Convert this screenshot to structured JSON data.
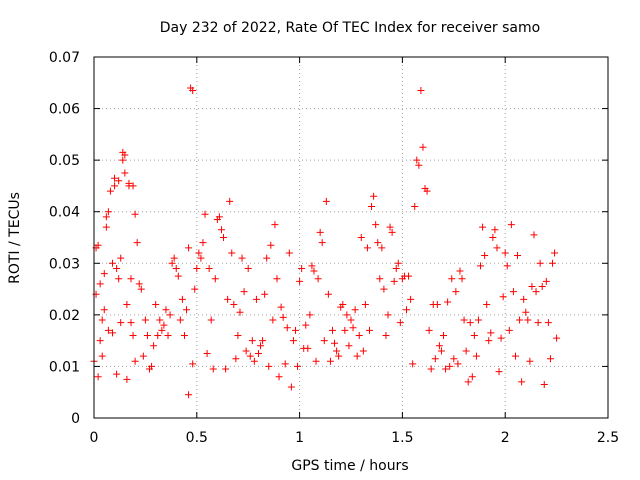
{
  "chart_data": {
    "type": "scatter",
    "title": "Day 232 of 2022, Rate Of TEC Index for receiver samo",
    "xlabel": "GPS time / hours",
    "ylabel": "ROTI / TECUs",
    "xlim": [
      0,
      2.5
    ],
    "ylim": [
      0,
      0.07
    ],
    "xticks": [
      "0",
      "0.5",
      "1",
      "1.5",
      "2",
      "2.5"
    ],
    "yticks": [
      "0",
      "0.01",
      "0.02",
      "0.03",
      "0.04",
      "0.05",
      "0.06",
      "0.07"
    ],
    "grid": true,
    "marker": "+",
    "color": "#ff0000",
    "series": [
      {
        "points": [
          [
            0.0,
            0.011
          ],
          [
            0.01,
            0.024
          ],
          [
            0.01,
            0.033
          ],
          [
            0.02,
            0.0335
          ],
          [
            0.02,
            0.008
          ],
          [
            0.03,
            0.015
          ],
          [
            0.03,
            0.026
          ],
          [
            0.04,
            0.019
          ],
          [
            0.04,
            0.012
          ],
          [
            0.05,
            0.028
          ],
          [
            0.05,
            0.021
          ],
          [
            0.06,
            0.039
          ],
          [
            0.06,
            0.037
          ],
          [
            0.07,
            0.04
          ],
          [
            0.07,
            0.017
          ],
          [
            0.08,
            0.044
          ],
          [
            0.09,
            0.03
          ],
          [
            0.09,
            0.0165
          ],
          [
            0.1,
            0.045
          ],
          [
            0.1,
            0.0465
          ],
          [
            0.11,
            0.029
          ],
          [
            0.11,
            0.0085
          ],
          [
            0.12,
            0.046
          ],
          [
            0.12,
            0.027
          ],
          [
            0.13,
            0.031
          ],
          [
            0.13,
            0.0185
          ],
          [
            0.14,
            0.0515
          ],
          [
            0.14,
            0.05
          ],
          [
            0.15,
            0.051
          ],
          [
            0.15,
            0.0475
          ],
          [
            0.16,
            0.022
          ],
          [
            0.16,
            0.0075
          ],
          [
            0.17,
            0.045
          ],
          [
            0.17,
            0.0455
          ],
          [
            0.18,
            0.027
          ],
          [
            0.18,
            0.0185
          ],
          [
            0.19,
            0.045
          ],
          [
            0.19,
            0.016
          ],
          [
            0.2,
            0.0395
          ],
          [
            0.2,
            0.011
          ],
          [
            0.21,
            0.034
          ],
          [
            0.22,
            0.026
          ],
          [
            0.23,
            0.025
          ],
          [
            0.24,
            0.012
          ],
          [
            0.25,
            0.019
          ],
          [
            0.26,
            0.016
          ],
          [
            0.27,
            0.0095
          ],
          [
            0.28,
            0.01
          ],
          [
            0.29,
            0.014
          ],
          [
            0.3,
            0.022
          ],
          [
            0.31,
            0.016
          ],
          [
            0.32,
            0.019
          ],
          [
            0.33,
            0.017
          ],
          [
            0.34,
            0.018
          ],
          [
            0.35,
            0.021
          ],
          [
            0.36,
            0.016
          ],
          [
            0.37,
            0.02
          ],
          [
            0.38,
            0.03
          ],
          [
            0.39,
            0.031
          ],
          [
            0.4,
            0.029
          ],
          [
            0.41,
            0.0275
          ],
          [
            0.42,
            0.019
          ],
          [
            0.43,
            0.023
          ],
          [
            0.44,
            0.016
          ],
          [
            0.45,
            0.021
          ],
          [
            0.46,
            0.0045
          ],
          [
            0.46,
            0.033
          ],
          [
            0.47,
            0.064
          ],
          [
            0.48,
            0.0635
          ],
          [
            0.48,
            0.0105
          ],
          [
            0.49,
            0.025
          ],
          [
            0.5,
            0.029
          ],
          [
            0.51,
            0.032
          ],
          [
            0.52,
            0.031
          ],
          [
            0.53,
            0.034
          ],
          [
            0.54,
            0.0395
          ],
          [
            0.55,
            0.0125
          ],
          [
            0.56,
            0.029
          ],
          [
            0.57,
            0.019
          ],
          [
            0.58,
            0.0095
          ],
          [
            0.59,
            0.027
          ],
          [
            0.6,
            0.0385
          ],
          [
            0.61,
            0.039
          ],
          [
            0.62,
            0.0365
          ],
          [
            0.63,
            0.035
          ],
          [
            0.64,
            0.0095
          ],
          [
            0.65,
            0.023
          ],
          [
            0.66,
            0.042
          ],
          [
            0.67,
            0.032
          ],
          [
            0.68,
            0.022
          ],
          [
            0.69,
            0.0115
          ],
          [
            0.7,
            0.016
          ],
          [
            0.71,
            0.0205
          ],
          [
            0.72,
            0.031
          ],
          [
            0.73,
            0.0245
          ],
          [
            0.74,
            0.013
          ],
          [
            0.75,
            0.029
          ],
          [
            0.76,
            0.012
          ],
          [
            0.77,
            0.015
          ],
          [
            0.78,
            0.011
          ],
          [
            0.79,
            0.023
          ],
          [
            0.8,
            0.0125
          ],
          [
            0.81,
            0.014
          ],
          [
            0.82,
            0.015
          ],
          [
            0.83,
            0.024
          ],
          [
            0.84,
            0.031
          ],
          [
            0.85,
            0.01
          ],
          [
            0.86,
            0.0335
          ],
          [
            0.87,
            0.019
          ],
          [
            0.88,
            0.0375
          ],
          [
            0.89,
            0.027
          ],
          [
            0.9,
            0.008
          ],
          [
            0.91,
            0.0215
          ],
          [
            0.92,
            0.0195
          ],
          [
            0.93,
            0.0105
          ],
          [
            0.94,
            0.0175
          ],
          [
            0.95,
            0.032
          ],
          [
            0.96,
            0.006
          ],
          [
            0.97,
            0.015
          ],
          [
            0.98,
            0.017
          ],
          [
            0.99,
            0.01
          ],
          [
            1.0,
            0.0265
          ],
          [
            1.01,
            0.029
          ],
          [
            1.02,
            0.0135
          ],
          [
            1.03,
            0.018
          ],
          [
            1.04,
            0.0135
          ],
          [
            1.05,
            0.02
          ],
          [
            1.06,
            0.0295
          ],
          [
            1.07,
            0.0285
          ],
          [
            1.08,
            0.011
          ],
          [
            1.09,
            0.027
          ],
          [
            1.1,
            0.036
          ],
          [
            1.11,
            0.034
          ],
          [
            1.12,
            0.015
          ],
          [
            1.13,
            0.042
          ],
          [
            1.14,
            0.024
          ],
          [
            1.15,
            0.011
          ],
          [
            1.16,
            0.017
          ],
          [
            1.17,
            0.0145
          ],
          [
            1.18,
            0.013
          ],
          [
            1.19,
            0.012
          ],
          [
            1.2,
            0.0215
          ],
          [
            1.21,
            0.022
          ],
          [
            1.22,
            0.017
          ],
          [
            1.23,
            0.02
          ],
          [
            1.24,
            0.014
          ],
          [
            1.25,
            0.019
          ],
          [
            1.26,
            0.0175
          ],
          [
            1.27,
            0.021
          ],
          [
            1.28,
            0.012
          ],
          [
            1.29,
            0.016
          ],
          [
            1.3,
            0.035
          ],
          [
            1.31,
            0.013
          ],
          [
            1.32,
            0.022
          ],
          [
            1.33,
            0.033
          ],
          [
            1.34,
            0.017
          ],
          [
            1.35,
            0.041
          ],
          [
            1.36,
            0.043
          ],
          [
            1.37,
            0.0375
          ],
          [
            1.38,
            0.034
          ],
          [
            1.39,
            0.027
          ],
          [
            1.4,
            0.033
          ],
          [
            1.41,
            0.025
          ],
          [
            1.42,
            0.016
          ],
          [
            1.43,
            0.02
          ],
          [
            1.44,
            0.037
          ],
          [
            1.45,
            0.036
          ],
          [
            1.46,
            0.0265
          ],
          [
            1.47,
            0.029
          ],
          [
            1.48,
            0.03
          ],
          [
            1.49,
            0.0185
          ],
          [
            1.5,
            0.027
          ],
          [
            1.51,
            0.0275
          ],
          [
            1.52,
            0.021
          ],
          [
            1.53,
            0.0275
          ],
          [
            1.54,
            0.023
          ],
          [
            1.55,
            0.0105
          ],
          [
            1.56,
            0.041
          ],
          [
            1.57,
            0.05
          ],
          [
            1.58,
            0.049
          ],
          [
            1.59,
            0.0635
          ],
          [
            1.6,
            0.0525
          ],
          [
            1.61,
            0.0445
          ],
          [
            1.62,
            0.044
          ],
          [
            1.63,
            0.017
          ],
          [
            1.64,
            0.0095
          ],
          [
            1.65,
            0.022
          ],
          [
            1.66,
            0.0115
          ],
          [
            1.67,
            0.022
          ],
          [
            1.68,
            0.014
          ],
          [
            1.69,
            0.013
          ],
          [
            1.7,
            0.016
          ],
          [
            1.71,
            0.0095
          ],
          [
            1.72,
            0.0225
          ],
          [
            1.73,
            0.01
          ],
          [
            1.74,
            0.027
          ],
          [
            1.75,
            0.0115
          ],
          [
            1.76,
            0.0245
          ],
          [
            1.77,
            0.0105
          ],
          [
            1.78,
            0.0285
          ],
          [
            1.79,
            0.027
          ],
          [
            1.8,
            0.019
          ],
          [
            1.81,
            0.013
          ],
          [
            1.82,
            0.007
          ],
          [
            1.83,
            0.0185
          ],
          [
            1.84,
            0.008
          ],
          [
            1.85,
            0.016
          ],
          [
            1.86,
            0.012
          ],
          [
            1.87,
            0.019
          ],
          [
            1.88,
            0.0295
          ],
          [
            1.89,
            0.037
          ],
          [
            1.9,
            0.0315
          ],
          [
            1.91,
            0.022
          ],
          [
            1.92,
            0.015
          ],
          [
            1.93,
            0.0165
          ],
          [
            1.94,
            0.035
          ],
          [
            1.95,
            0.0365
          ],
          [
            1.96,
            0.033
          ],
          [
            1.97,
            0.009
          ],
          [
            1.98,
            0.0155
          ],
          [
            1.99,
            0.0235
          ],
          [
            2.0,
            0.032
          ],
          [
            2.01,
            0.0295
          ],
          [
            2.02,
            0.017
          ],
          [
            2.03,
            0.0375
          ],
          [
            2.04,
            0.0245
          ],
          [
            2.05,
            0.012
          ],
          [
            2.06,
            0.0315
          ],
          [
            2.07,
            0.019
          ],
          [
            2.08,
            0.007
          ],
          [
            2.09,
            0.023
          ],
          [
            2.1,
            0.0205
          ],
          [
            2.11,
            0.019
          ],
          [
            2.12,
            0.011
          ],
          [
            2.13,
            0.0255
          ],
          [
            2.14,
            0.0355
          ],
          [
            2.15,
            0.0245
          ],
          [
            2.16,
            0.0185
          ],
          [
            2.17,
            0.03
          ],
          [
            2.18,
            0.0255
          ],
          [
            2.19,
            0.0065
          ],
          [
            2.2,
            0.0265
          ],
          [
            2.21,
            0.0185
          ],
          [
            2.22,
            0.0115
          ],
          [
            2.23,
            0.03
          ],
          [
            2.24,
            0.032
          ],
          [
            2.25,
            0.0155
          ]
        ]
      }
    ]
  }
}
